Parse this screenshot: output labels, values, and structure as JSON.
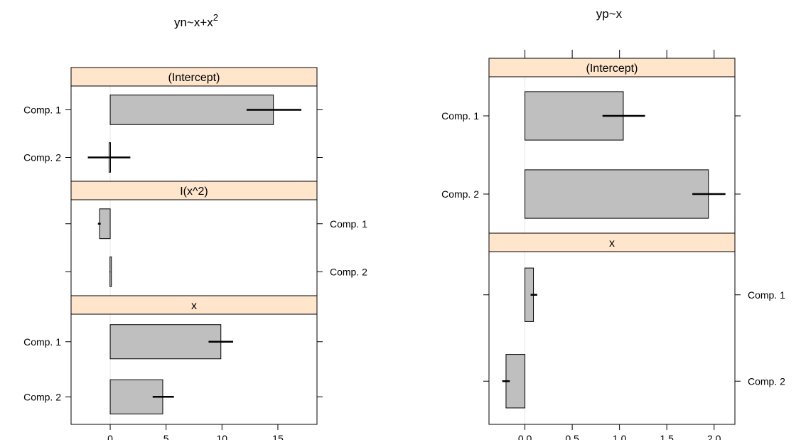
{
  "colors": {
    "strip": "#ffe5cc",
    "bar": "#bfbfbf",
    "ref": "#e6e6e6"
  },
  "chart_data": [
    {
      "type": "bar",
      "orientation": "horizontal",
      "title": "yn~x+x²",
      "title_base": "yn~x+x",
      "title_sup": "2",
      "xlim": [
        -3.5,
        18.5
      ],
      "ticks": [
        0,
        5,
        10,
        15
      ],
      "tick_labels": [
        "0",
        "5",
        "10",
        "15"
      ],
      "tick_axis_side": "bottom",
      "panels": [
        {
          "label": "(Intercept)",
          "label_side": "left",
          "categories": [
            "Comp. 1",
            "Comp. 2"
          ],
          "values": [
            14.6,
            -0.1
          ],
          "ci": [
            [
              12.2,
              17.1
            ],
            [
              -2.0,
              1.8
            ]
          ]
        },
        {
          "label": "I(x^2)",
          "label_side": "right",
          "categories": [
            "Comp. 1",
            "Comp. 2"
          ],
          "values": [
            -0.95,
            -0.02
          ],
          "ci": [
            [
              -1.1,
              -0.85
            ],
            [
              -0.05,
              0.02
            ]
          ]
        },
        {
          "label": "x",
          "label_side": "left",
          "categories": [
            "Comp. 1",
            "Comp. 2"
          ],
          "values": [
            9.9,
            4.7
          ],
          "ci": [
            [
              8.8,
              11.0
            ],
            [
              3.8,
              5.7
            ]
          ]
        }
      ]
    },
    {
      "type": "bar",
      "orientation": "horizontal",
      "title": "yp~x",
      "title_base": "yp~x",
      "title_sup": "",
      "xlim": [
        -0.38,
        2.22
      ],
      "ticks": [
        0.0,
        0.5,
        1.0,
        1.5,
        2.0
      ],
      "tick_labels": [
        "0.0",
        "0.5",
        "1.0",
        "1.5",
        "2.0"
      ],
      "tick_axis_side": "bottom",
      "panels": [
        {
          "label": "(Intercept)",
          "label_side": "left",
          "categories": [
            "Comp. 1",
            "Comp. 2"
          ],
          "values": [
            1.04,
            1.94
          ],
          "ci": [
            [
              0.82,
              1.27
            ],
            [
              1.77,
              2.12
            ]
          ]
        },
        {
          "label": "x",
          "label_side": "right",
          "categories": [
            "Comp. 1",
            "Comp. 2"
          ],
          "values": [
            0.09,
            -0.2
          ],
          "ci": [
            [
              0.06,
              0.13
            ],
            [
              -0.24,
              -0.16
            ]
          ]
        }
      ]
    }
  ]
}
